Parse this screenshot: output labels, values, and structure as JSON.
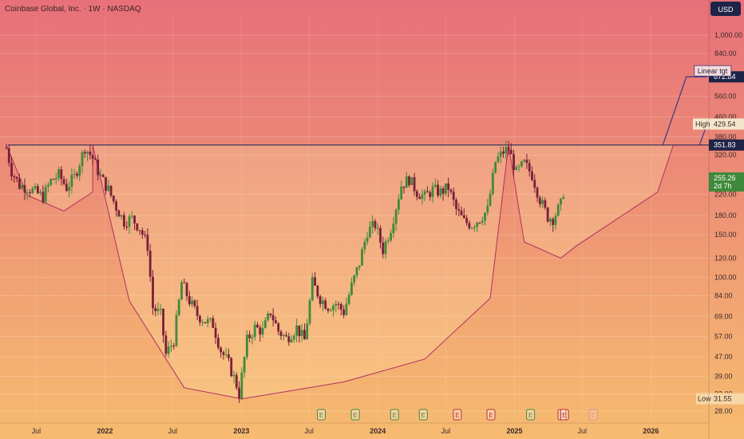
{
  "header": {
    "title": "Coinbase Global, Inc. · 1W · NASDAQ",
    "currency": "USD"
  },
  "colors": {
    "up": "#3f8a3a",
    "down": "#7a1f3a",
    "pattern_line": "#b03060",
    "resistance_line": "#2a2a5a",
    "target_line": "#3a3a80",
    "label_dark_bg": "#1f2447"
  },
  "chart_data": {
    "type": "candlestick",
    "title": "Coinbase Global, Inc. · 1W · NASDAQ",
    "y_scale": "log",
    "ylim": [
      26,
      1200
    ],
    "y_ticks": [
      1000,
      840,
      560,
      460,
      380,
      320,
      220,
      180,
      150,
      120,
      100,
      84,
      69,
      57,
      47,
      39,
      33,
      28
    ],
    "y_tick_labels": [
      "1,000.00",
      "840.00",
      "560.00",
      "460.00",
      "380.00",
      "320.00",
      "220.00",
      "180.00",
      "150.00",
      "120.00",
      "100.00",
      "84.00",
      "69.00",
      "57.00",
      "47.00",
      "39.00",
      "33.00",
      "28.00"
    ],
    "x_range": [
      "2021-04-12",
      "2026-06-01"
    ],
    "x_ticks": [
      {
        "label": "Jul",
        "date": "2021-07-01"
      },
      {
        "label": "2022",
        "date": "2022-01-01"
      },
      {
        "label": "Jul",
        "date": "2022-07-01"
      },
      {
        "label": "2023",
        "date": "2023-01-01"
      },
      {
        "label": "Jul",
        "date": "2023-07-01"
      },
      {
        "label": "2024",
        "date": "2024-01-01"
      },
      {
        "label": "Jul",
        "date": "2024-07-01"
      },
      {
        "label": "2025",
        "date": "2025-01-01"
      },
      {
        "label": "Jul",
        "date": "2025-07-01"
      },
      {
        "label": "2026",
        "date": "2026-01-01"
      }
    ],
    "price_labels": {
      "linear_target": {
        "text": "Linear tgt",
        "value": 672.84,
        "value_text": "672.84"
      },
      "high": {
        "text": "High",
        "value": 429.54,
        "value_text": "429.54"
      },
      "resistance": {
        "value": 351.83,
        "value_text": "351.83"
      },
      "last": {
        "value": 255.26,
        "value_text": "255.26",
        "countdown": "2d 7h"
      },
      "low": {
        "text": "Low",
        "value": 31.55,
        "value_text": "31.55"
      }
    },
    "earnings_markers": [
      {
        "date": "2023-08-03",
        "symbol": "E",
        "kind": "past-up"
      },
      {
        "date": "2023-11-02",
        "symbol": "E",
        "kind": "past-up"
      },
      {
        "date": "2024-02-15",
        "symbol": "E",
        "kind": "past-up"
      },
      {
        "date": "2024-05-02",
        "symbol": "E",
        "kind": "past-up"
      },
      {
        "date": "2024-08-01",
        "symbol": "E",
        "kind": "past-down"
      },
      {
        "date": "2024-10-30",
        "symbol": "E",
        "kind": "past-down"
      },
      {
        "date": "2025-02-13",
        "symbol": "E",
        "kind": "past-up"
      },
      {
        "date": "2025-05-08",
        "symbol": "E",
        "kind": "past-down"
      },
      {
        "date": "2025-05-15",
        "symbol": "E",
        "kind": "past-down"
      },
      {
        "date": "2025-07-31",
        "symbol": "E",
        "kind": "future"
      }
    ],
    "price_path": [
      [
        "2021-04-12",
        342
      ],
      [
        "2021-04-26",
        275
      ],
      [
        "2021-05-17",
        240
      ],
      [
        "2021-06-07",
        235
      ],
      [
        "2021-06-28",
        225
      ],
      [
        "2021-07-19",
        215
      ],
      [
        "2021-08-09",
        250
      ],
      [
        "2021-08-30",
        265
      ],
      [
        "2021-09-20",
        235
      ],
      [
        "2021-10-11",
        260
      ],
      [
        "2021-11-01",
        320
      ],
      [
        "2021-11-08",
        345
      ],
      [
        "2021-11-29",
        310
      ],
      [
        "2021-12-20",
        260
      ],
      [
        "2022-01-10",
        230
      ],
      [
        "2022-01-31",
        195
      ],
      [
        "2022-02-21",
        170
      ],
      [
        "2022-03-14",
        175
      ],
      [
        "2022-04-04",
        160
      ],
      [
        "2022-04-25",
        135
      ],
      [
        "2022-05-09",
        75
      ],
      [
        "2022-05-30",
        70
      ],
      [
        "2022-06-13",
        48
      ],
      [
        "2022-07-04",
        55
      ],
      [
        "2022-07-25",
        95
      ],
      [
        "2022-08-15",
        80
      ],
      [
        "2022-09-05",
        70
      ],
      [
        "2022-09-26",
        66
      ],
      [
        "2022-10-17",
        64
      ],
      [
        "2022-11-07",
        50
      ],
      [
        "2022-11-28",
        44
      ],
      [
        "2022-12-19",
        36
      ],
      [
        "2022-12-26",
        33
      ],
      [
        "2023-01-16",
        55
      ],
      [
        "2023-02-06",
        62
      ],
      [
        "2023-02-27",
        60
      ],
      [
        "2023-03-20",
        72
      ],
      [
        "2023-04-10",
        60
      ],
      [
        "2023-05-01",
        56
      ],
      [
        "2023-05-29",
        62
      ],
      [
        "2023-06-19",
        55
      ],
      [
        "2023-07-10",
        95
      ],
      [
        "2023-07-31",
        82
      ],
      [
        "2023-08-21",
        76
      ],
      [
        "2023-09-11",
        78
      ],
      [
        "2023-10-02",
        72
      ],
      [
        "2023-10-23",
        92
      ],
      [
        "2023-11-13",
        115
      ],
      [
        "2023-12-04",
        155
      ],
      [
        "2023-12-25",
        165
      ],
      [
        "2024-01-15",
        130
      ],
      [
        "2024-02-05",
        160
      ],
      [
        "2024-03-04",
        240
      ],
      [
        "2024-03-25",
        255
      ],
      [
        "2024-04-15",
        225
      ],
      [
        "2024-05-06",
        215
      ],
      [
        "2024-05-27",
        230
      ],
      [
        "2024-06-17",
        225
      ],
      [
        "2024-07-08",
        235
      ],
      [
        "2024-07-29",
        190
      ],
      [
        "2024-08-19",
        170
      ],
      [
        "2024-09-09",
        165
      ],
      [
        "2024-09-30",
        175
      ],
      [
        "2024-10-21",
        190
      ],
      [
        "2024-11-11",
        300
      ],
      [
        "2024-12-02",
        330
      ],
      [
        "2024-12-16",
        340
      ],
      [
        "2025-01-06",
        270
      ],
      [
        "2025-01-27",
        295
      ],
      [
        "2025-02-17",
        265
      ],
      [
        "2025-03-10",
        210
      ],
      [
        "2025-03-31",
        178
      ],
      [
        "2025-04-14",
        175
      ],
      [
        "2025-05-05",
        200
      ],
      [
        "2025-05-19",
        255
      ]
    ],
    "cup_handle_lines": [
      {
        "name": "left-handle",
        "points": [
          [
            "2021-04-12",
            352
          ],
          [
            "2021-06-07",
            218
          ],
          [
            "2021-09-13",
            188
          ],
          [
            "2021-11-29",
            225
          ],
          [
            "2021-11-29",
            352
          ]
        ]
      },
      {
        "name": "cup",
        "points": [
          [
            "2021-11-29",
            352
          ],
          [
            "2022-03-07",
            80
          ],
          [
            "2022-08-01",
            35
          ],
          [
            "2023-01-02",
            31.5
          ],
          [
            "2023-10-02",
            37
          ],
          [
            "2024-05-06",
            46
          ],
          [
            "2024-10-28",
            82
          ],
          [
            "2024-12-16",
            352
          ]
        ]
      },
      {
        "name": "right-handle",
        "points": [
          [
            "2024-12-16",
            352
          ],
          [
            "2025-01-27",
            140
          ],
          [
            "2025-05-05",
            120
          ],
          [
            "2025-06-16",
            135
          ],
          [
            "2026-01-19",
            225
          ],
          [
            "2026-03-02",
            352
          ]
        ]
      },
      {
        "name": "target-line",
        "points": [
          [
            "2026-02-02",
            352
          ],
          [
            "2026-04-06",
            672.84
          ],
          [
            "2026-06-01",
            672.84
          ]
        ]
      },
      {
        "name": "target-line-2",
        "points": [
          [
            "2026-05-11",
            352
          ],
          [
            "2026-06-01",
            430
          ]
        ]
      }
    ],
    "resistance_level": 351.83
  }
}
